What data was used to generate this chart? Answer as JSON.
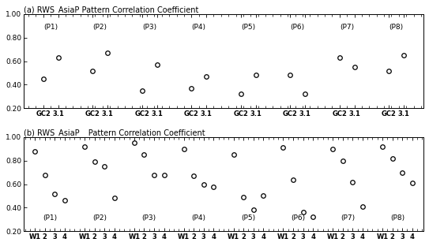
{
  "panel_a": {
    "title": "(a) RWS_AsiaP Pattern Correlation Coefficient",
    "phases": [
      "(P1)",
      "(P2)",
      "(P3)",
      "(P4)",
      "(P5)",
      "(P6)",
      "(P7)",
      "(P8)"
    ],
    "gc2_values": [
      0.45,
      0.52,
      0.35,
      0.37,
      0.32,
      0.48,
      0.63,
      0.52
    ],
    "v31_values": [
      0.63,
      0.67,
      0.57,
      0.47,
      0.48,
      0.32,
      0.55,
      0.65
    ],
    "ylim": [
      0.2,
      1.0
    ],
    "yticks": [
      0.2,
      0.4,
      0.6,
      0.8,
      1.0
    ]
  },
  "panel_b": {
    "title": "(b) RWS_AsiaP_  Pattern Correlation Coefficient",
    "phases": [
      "(P1)",
      "(P2)",
      "(P3)",
      "(P4)",
      "(P5)",
      "(P6)",
      "(P7)",
      "(P8)"
    ],
    "values": [
      [
        0.88,
        0.68,
        0.52,
        0.46
      ],
      [
        0.92,
        0.79,
        0.75,
        0.48
      ],
      [
        0.95,
        0.85,
        0.68,
        0.68
      ],
      [
        0.9,
        0.67,
        0.6,
        0.58
      ],
      [
        0.85,
        0.49,
        0.38,
        0.5
      ],
      [
        0.91,
        0.64,
        0.36,
        0.32
      ],
      [
        0.9,
        0.8,
        0.62,
        0.41
      ],
      [
        0.92,
        0.82,
        0.7,
        0.61
      ]
    ],
    "ylim": [
      0.2,
      1.0
    ],
    "yticks": [
      0.2,
      0.4,
      0.6,
      0.8,
      1.0
    ]
  },
  "marker": "o",
  "markersize": 4,
  "markerfacecolor": "white",
  "markeredgecolor": "black",
  "markeredgewidth": 0.9,
  "bg_color": "white",
  "text_color": "black"
}
